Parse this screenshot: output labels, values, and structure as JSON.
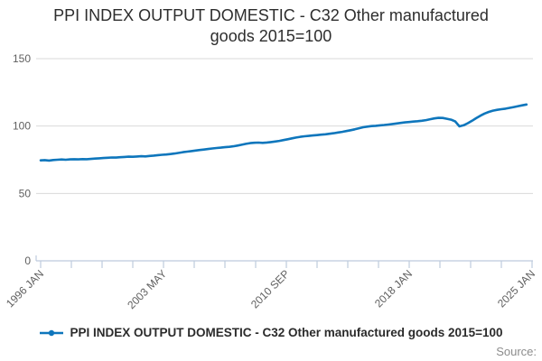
{
  "title": "PPI INDEX OUTPUT DOMESTIC - C32 Other manufactured goods 2015=100",
  "source_label": "Source:",
  "colors": {
    "line": "#0e76bc",
    "grid": "#dadada",
    "axis": "#becbdd",
    "tick_label": "#5f5f5f",
    "title_text": "#2d2d2d",
    "legend_text": "#2b2b2b",
    "source_text": "#8c8c8c"
  },
  "chart_data": {
    "type": "line",
    "title": "PPI INDEX OUTPUT DOMESTIC - C32 Other manufactured goods 2015=100",
    "xlabel": "",
    "ylabel": "",
    "ylim": [
      0,
      150
    ],
    "yticks": [
      0,
      50,
      100,
      150
    ],
    "x_tick_labels": [
      "1996 JAN",
      "2003 MAY",
      "2010 SEP",
      "2018 JAN",
      "2025 JAN"
    ],
    "minor_ticks_between": 3,
    "grid": "horizontal",
    "legend_position": "bottom",
    "xlim": [
      1996.0,
      2025.333
    ],
    "series": [
      {
        "name": "PPI INDEX OUTPUT DOMESTIC - C32 Other manufactured goods 2015=100",
        "x_unit": "decimal_year_quarterly",
        "x_start": 1996.0,
        "x_step": 0.25,
        "values": [
          74.5,
          74.7,
          74.4,
          74.8,
          75.0,
          75.2,
          75.0,
          75.3,
          75.4,
          75.3,
          75.5,
          75.4,
          75.6,
          75.9,
          76.1,
          76.3,
          76.5,
          76.7,
          76.6,
          76.9,
          77.1,
          77.3,
          77.2,
          77.4,
          77.6,
          77.5,
          77.8,
          78.1,
          78.4,
          78.7,
          78.9,
          79.2,
          79.6,
          80.1,
          80.6,
          81.0,
          81.4,
          81.8,
          82.2,
          82.6,
          83.0,
          83.4,
          83.7,
          84.0,
          84.3,
          84.6,
          85.0,
          85.5,
          86.1,
          86.8,
          87.3,
          87.6,
          87.7,
          87.5,
          87.8,
          88.1,
          88.5,
          89.0,
          89.6,
          90.2,
          90.9,
          91.5,
          92.0,
          92.4,
          92.7,
          93.0,
          93.3,
          93.6,
          93.9,
          94.3,
          94.7,
          95.2,
          95.7,
          96.3,
          96.9,
          97.6,
          98.4,
          99.1,
          99.6,
          100.0,
          100.2,
          100.5,
          100.8,
          101.1,
          101.5,
          101.9,
          102.3,
          102.7,
          103.0,
          103.3,
          103.6,
          103.9,
          104.4,
          105.1,
          105.7,
          106.1,
          106.0,
          105.4,
          104.7,
          103.4,
          99.8,
          100.6,
          102.1,
          103.9,
          105.9,
          107.7,
          109.3,
          110.5,
          111.4,
          112.0,
          112.5,
          112.9,
          113.5,
          114.1,
          114.8,
          115.4,
          116.0
        ]
      }
    ]
  }
}
